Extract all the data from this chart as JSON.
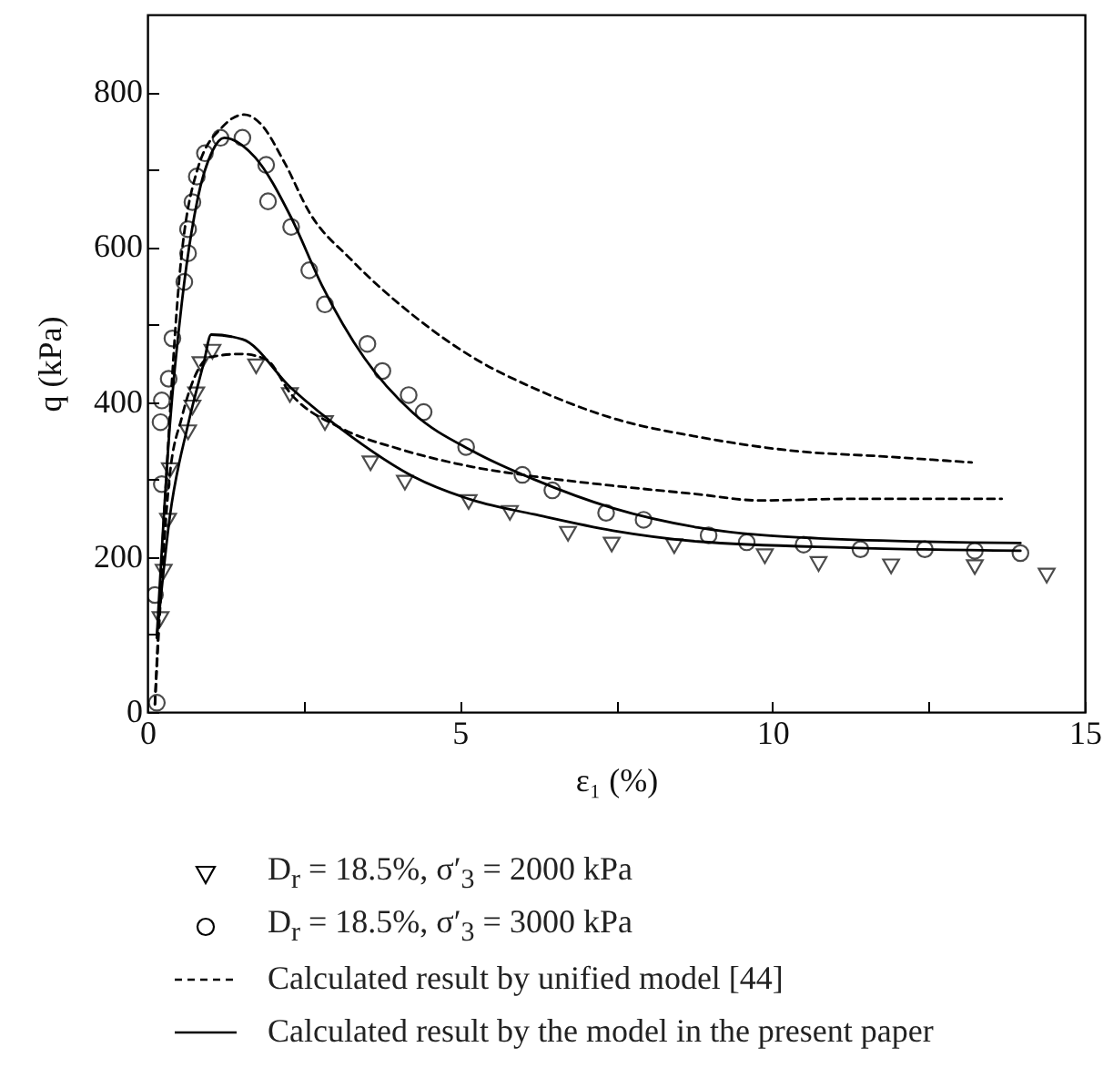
{
  "chart_data": {
    "type": "scatter",
    "xlabel": "ε₁ (%)",
    "ylabel": "q (kPa)",
    "xlim": [
      0,
      15
    ],
    "xticks": [
      0,
      {
        "value": 2.5,
        "label": null
      },
      5,
      {
        "value": 7.5,
        "label": null
      },
      10,
      {
        "value": 12.5,
        "label": null
      },
      15
    ],
    "ylim": [
      0,
      900
    ],
    "yticks": [
      0,
      {
        "value": 100,
        "label": null
      },
      200,
      {
        "value": 300,
        "label": null
      },
      400,
      {
        "value": 500,
        "label": null
      },
      600,
      {
        "value": 700,
        "label": null
      },
      800
    ],
    "grid": false,
    "legend": "bottom",
    "series": [
      {
        "name": "D$_{r}$ = 18.5%, σ′$_{3}$ = 2000 kPa",
        "color": "#000000",
        "marker": "triangle",
        "x": [
          0.21,
          0.26,
          0.33,
          0.36,
          0.65,
          0.72,
          0.78,
          0.85,
          1.04,
          1.74,
          2.28,
          2.84,
          3.57,
          4.12,
          5.14,
          5.8,
          6.73,
          7.43,
          8.43,
          9.88,
          10.74,
          11.9,
          13.24,
          14.39
        ],
        "values": [
          120,
          181,
          247,
          312,
          361,
          393,
          410,
          449,
          465,
          446,
          409,
          373,
          321,
          296,
          271,
          257,
          230,
          216,
          214,
          201,
          191,
          188,
          187,
          176
        ]
      },
      {
        "name": "D$_{r}$ = 18.5%, σ′$_{3}$ = 3000 kPa",
        "color": "#000000",
        "marker": "circle",
        "x": [
          0.12,
          0.15,
          0.21,
          0.23,
          0.23,
          0.34,
          0.4,
          0.59,
          0.65,
          0.65,
          0.72,
          0.79,
          0.92,
          1.17,
          1.52,
          1.9,
          1.93,
          2.3,
          2.59,
          2.84,
          3.52,
          3.76,
          4.18,
          4.42,
          5.1,
          6.0,
          6.48,
          7.34,
          7.94,
          8.98,
          9.59,
          10.5,
          11.41,
          12.44,
          13.24,
          13.97
        ],
        "values": [
          151,
          12,
          374,
          402,
          294,
          430,
          482,
          555,
          592,
          623,
          658,
          691,
          721,
          741,
          741,
          706,
          659,
          626,
          570,
          526,
          475,
          440,
          409,
          387,
          342,
          306,
          286,
          257,
          248,
          228,
          219,
          216,
          210,
          210,
          208,
          205
        ]
      },
      {
        "type": "line",
        "name": "Calculated result by unified model [44]",
        "color": "#000000",
        "line_style": "dashed",
        "x": [
          0.12,
          0.2,
          0.3,
          0.5,
          0.8,
          1.2,
          1.55,
          1.8,
          2.2,
          2.59,
          3.27,
          4.25,
          5.22,
          6.18,
          7.45,
          8.81,
          10.47,
          11.73,
          13.19
        ],
        "values": [
          10,
          150,
          300,
          550,
          700,
          755,
          771,
          760,
          708,
          645,
          583,
          512,
          457,
          418,
          379,
          355,
          336,
          330,
          322
        ]
      },
      {
        "type": "line",
        "color": "#000000",
        "line_style": "dashed",
        "x": [
          0.12,
          0.2,
          0.35,
          0.55,
          0.8,
          1.0,
          1.5,
          1.9,
          2.3,
          3.08,
          4.05,
          5.22,
          6.19,
          7.45,
          8.81,
          9.79,
          11.24,
          13.67
        ],
        "values": [
          10,
          130,
          300,
          380,
          440,
          458,
          462,
          455,
          410,
          367,
          339,
          316,
          304,
          292,
          281,
          273,
          275,
          275
        ]
      },
      {
        "type": "line",
        "name": "Calculated result by the model in the present paper",
        "color": "#000000",
        "line_style": "solid",
        "x": [
          0.15,
          0.36,
          0.55,
          0.8,
          1.04,
          1.23,
          1.72,
          2.3,
          2.79,
          3.47,
          4.25,
          5.22,
          6.19,
          7.45,
          8.81,
          10.76,
          13.97
        ],
        "values": [
          96,
          371,
          528,
          661,
          724,
          741,
          716,
          638,
          551,
          457,
          386,
          336,
          300,
          263,
          238,
          224,
          218
        ]
      },
      {
        "type": "line",
        "color": "#000000",
        "line_style": "solid",
        "x": [
          0.15,
          0.36,
          0.65,
          0.9,
          1.02,
          1.52,
          2.3,
          3.27,
          4.25,
          5.22,
          6.19,
          7.45,
          8.81,
          11.24,
          13.97
        ],
        "values": [
          96,
          253,
          371,
          450,
          487,
          481,
          418,
          355,
          304,
          273,
          255,
          234,
          220,
          212,
          208
        ]
      }
    ]
  }
}
